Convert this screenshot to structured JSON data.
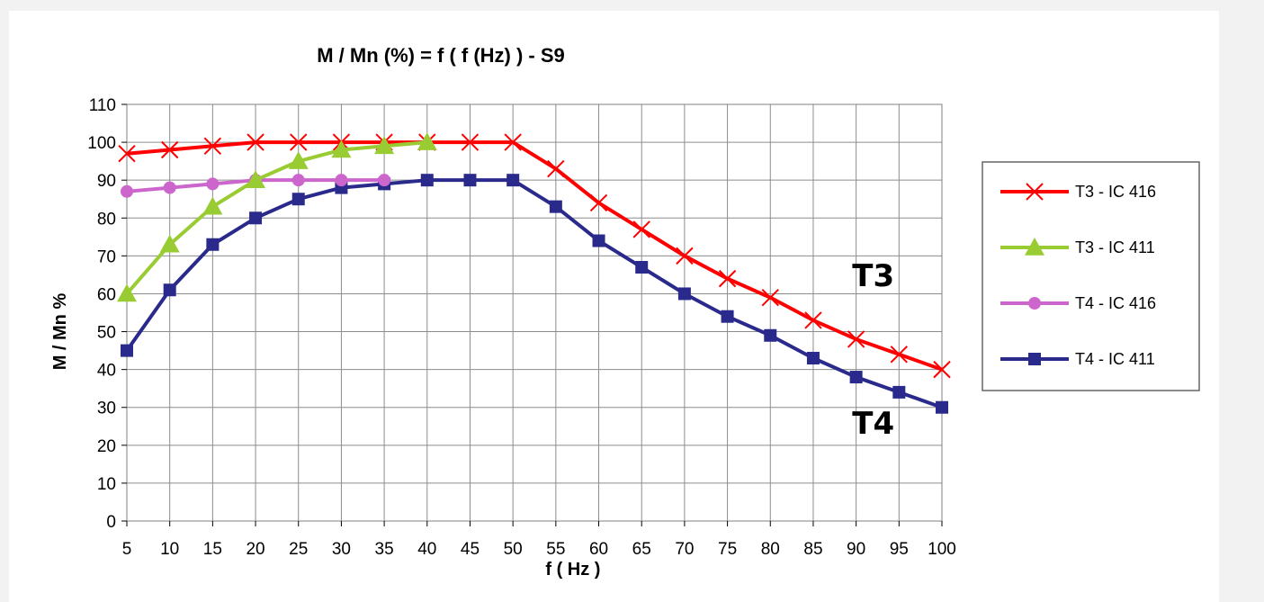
{
  "chart_data": {
    "type": "line",
    "title": "M / Mn (%) = f ( f (Hz) )  - S9",
    "xlabel": "f ( Hz )",
    "ylabel": "M / Mn %",
    "xlim": [
      5,
      100
    ],
    "ylim": [
      0,
      110
    ],
    "x_ticks": [
      5,
      10,
      15,
      20,
      25,
      30,
      35,
      40,
      45,
      50,
      55,
      60,
      65,
      70,
      75,
      80,
      85,
      90,
      95,
      100
    ],
    "y_ticks": [
      0,
      10,
      20,
      30,
      40,
      50,
      60,
      70,
      80,
      90,
      100,
      110
    ],
    "grid": true,
    "legend_position": "right",
    "series": [
      {
        "name": "T3 - IC 416",
        "color": "#ff0000",
        "marker": "x",
        "x": [
          5,
          10,
          15,
          20,
          25,
          30,
          35,
          40,
          45,
          50,
          55,
          60,
          65,
          70,
          75,
          80,
          85,
          90,
          95,
          100
        ],
        "y": [
          97,
          98,
          99,
          100,
          100,
          100,
          100,
          100,
          100,
          100,
          93,
          84,
          77,
          70,
          64,
          59,
          53,
          48,
          44,
          40
        ]
      },
      {
        "name": "T3 - IC 411",
        "color": "#99cc33",
        "marker": "triangle",
        "x": [
          5,
          10,
          15,
          20,
          25,
          30,
          35,
          40
        ],
        "y": [
          60,
          73,
          83,
          90,
          95,
          98,
          99,
          100
        ]
      },
      {
        "name": "T4 - IC 416",
        "color": "#cc66cc",
        "marker": "circle",
        "x": [
          5,
          10,
          15,
          20,
          25,
          30,
          35
        ],
        "y": [
          87,
          88,
          89,
          90,
          90,
          90,
          90
        ]
      },
      {
        "name": "T4 - IC 411",
        "color": "#2a2a8c",
        "marker": "square",
        "x": [
          5,
          10,
          15,
          20,
          25,
          30,
          35,
          40,
          45,
          50,
          55,
          60,
          65,
          70,
          75,
          80,
          85,
          90,
          95,
          100
        ],
        "y": [
          45,
          61,
          73,
          80,
          85,
          88,
          89,
          90,
          90,
          90,
          83,
          74,
          67,
          60,
          54,
          49,
          43,
          38,
          34,
          30
        ]
      }
    ],
    "annotations": [
      {
        "text": "T3",
        "x": 92,
        "y": 62
      },
      {
        "text": "T4",
        "x": 92,
        "y": 23
      }
    ]
  }
}
